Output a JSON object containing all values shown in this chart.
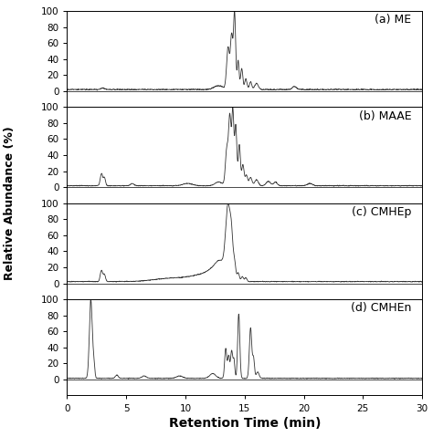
{
  "title": "",
  "xlabel": "Retention Time (min)",
  "ylabel": "Relative Abundance (%)",
  "xlim": [
    0,
    30
  ],
  "ylim": [
    -20,
    100
  ],
  "xticks": [
    0,
    5,
    10,
    15,
    20,
    25,
    30
  ],
  "yticks": [
    0,
    20,
    40,
    60,
    80,
    100
  ],
  "panels": [
    {
      "label": "(a) ME"
    },
    {
      "label": "(b) MAAE"
    },
    {
      "label": "(c) CMHEp"
    },
    {
      "label": "(d) CMHEn"
    }
  ],
  "line_color": "#333333",
  "line_width": 0.6,
  "background_color": "#ffffff",
  "tick_fontsize": 7.5,
  "label_fontsize": 9,
  "panel_label_fontsize": 9
}
